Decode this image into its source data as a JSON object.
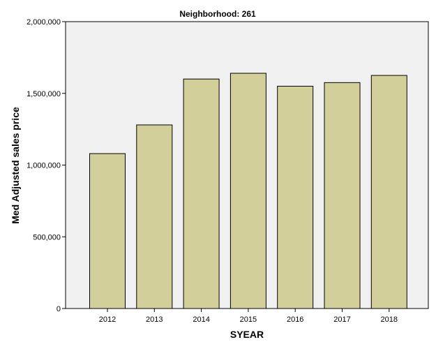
{
  "chart_data": {
    "type": "bar",
    "title": "Neighborhood: 261",
    "xlabel": "SYEAR",
    "ylabel": "Med Adjusted sales price",
    "categories": [
      "2012",
      "2013",
      "2014",
      "2015",
      "2016",
      "2017",
      "2018"
    ],
    "values": [
      1080000,
      1280000,
      1600000,
      1640000,
      1550000,
      1575000,
      1625000
    ],
    "ylim": [
      0,
      2000000
    ],
    "yticks": [
      0,
      500000,
      1000000,
      1500000,
      2000000
    ],
    "ytick_labels": [
      "0",
      "500,000",
      "1,000,000",
      "1,500,000",
      "2,000,000"
    ],
    "grid": false,
    "legend": "none",
    "bar_color": "#d3cf9a",
    "plot_background": "#f0f0f0"
  }
}
